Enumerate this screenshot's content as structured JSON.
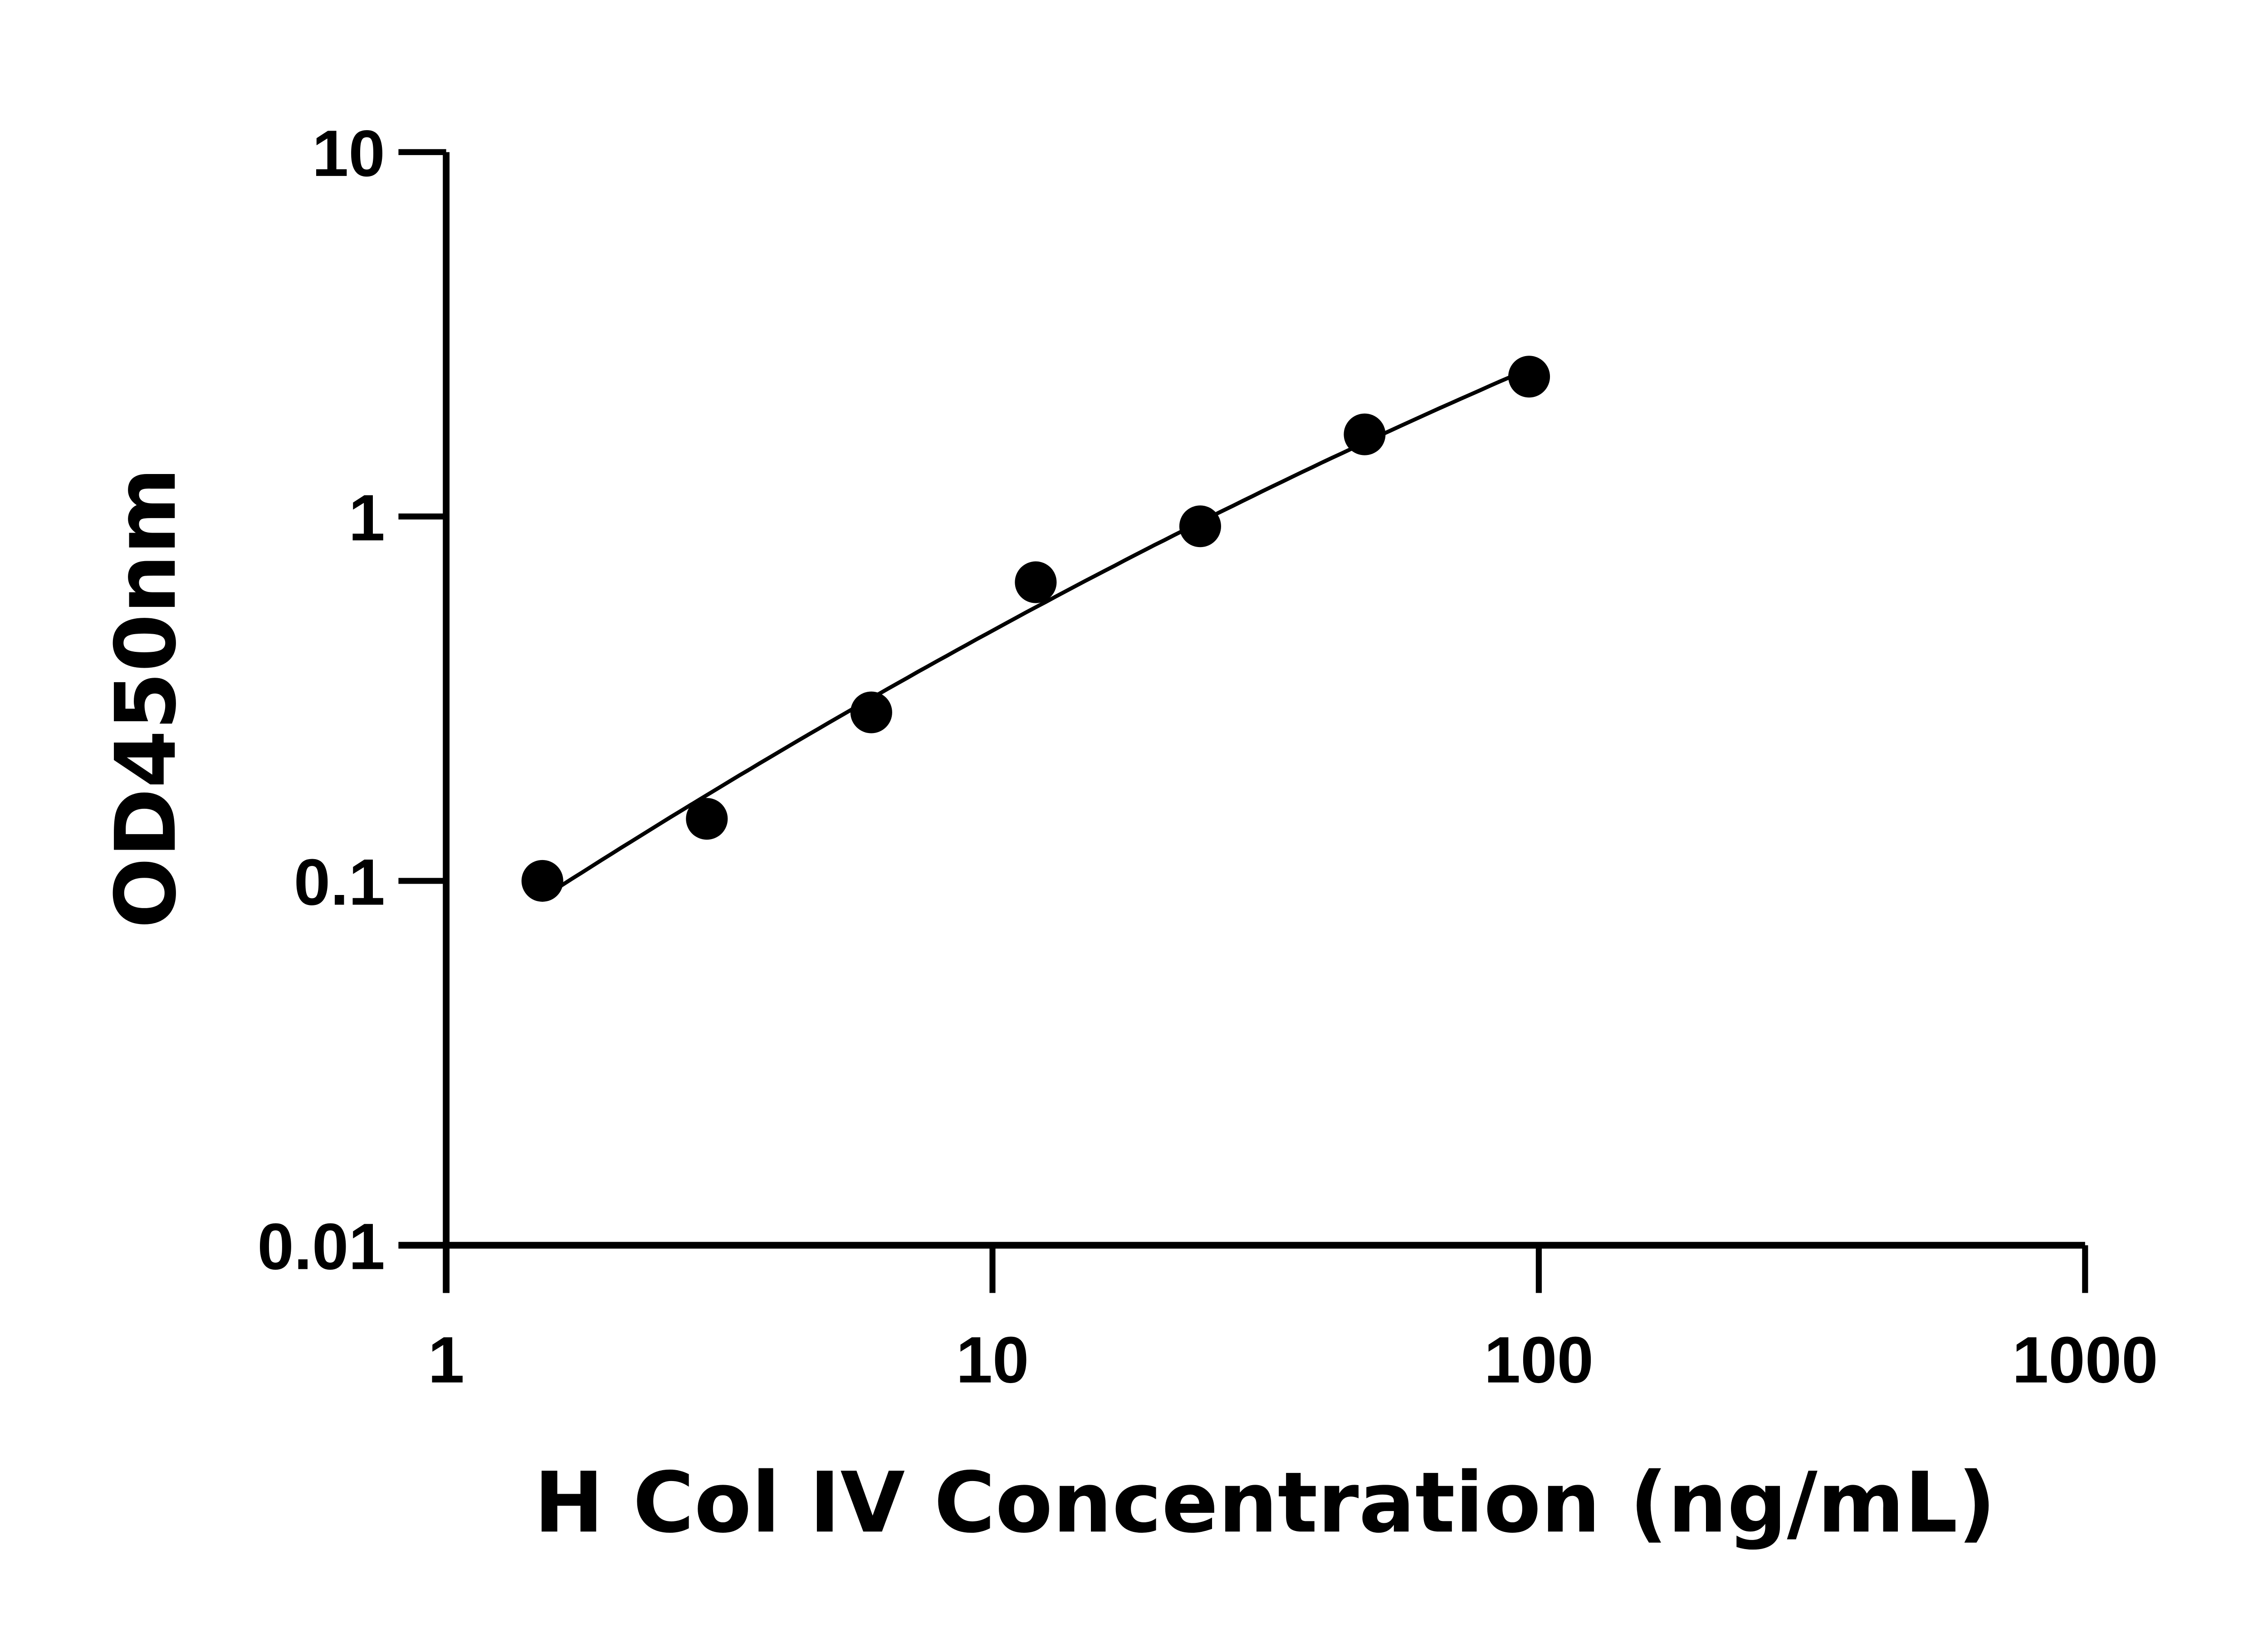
{
  "chart_data": {
    "type": "scatter",
    "title": "",
    "xlabel": "H Col IV Concentration (ng/mL)",
    "ylabel": "OD450nm",
    "x_scale": "log",
    "y_scale": "log",
    "xlim": [
      1,
      1000
    ],
    "ylim": [
      0.01,
      10
    ],
    "x_ticks": [
      "1",
      "10",
      "100",
      "1000"
    ],
    "y_ticks": [
      "0.01",
      "0.1",
      "1",
      "10"
    ],
    "grid": false,
    "legend": "none",
    "series": [
      {
        "x": [
          1.5,
          3,
          6,
          12,
          24,
          48,
          96
        ],
        "y": [
          0.1,
          0.148,
          0.29,
          0.66,
          0.94,
          1.68,
          2.42
        ],
        "marker": "filled-circle",
        "fit_line": true,
        "color": "#000000"
      }
    ]
  }
}
